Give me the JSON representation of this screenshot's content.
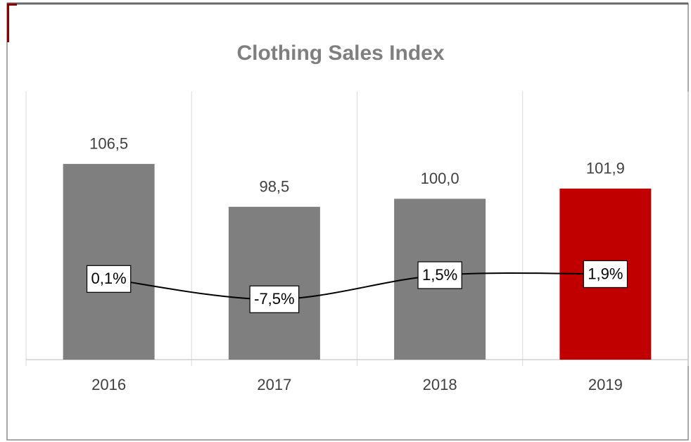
{
  "chart_data": {
    "type": "bar_line",
    "title": "Clothing Sales Index",
    "categories": [
      "2016",
      "2017",
      "2018",
      "2019"
    ],
    "series": [
      {
        "type": "bar",
        "colors": [
          "#7f7f7f",
          "#7f7f7f",
          "#7f7f7f",
          "#c00000"
        ],
        "values": [
          106.5,
          98.5,
          100.0,
          101.9
        ],
        "value_labels": [
          "106,5",
          "98,5",
          "100,0",
          "101,9"
        ]
      },
      {
        "type": "line",
        "axis": "y2",
        "color": "#000000",
        "values": [
          0.1,
          -7.5,
          1.5,
          1.9
        ],
        "value_labels": [
          "0,1%",
          "-7,5%",
          "1,5%",
          "1,9%"
        ]
      }
    ],
    "ylim": [
      70,
      120
    ],
    "y2lim": [
      -30,
      70
    ]
  }
}
